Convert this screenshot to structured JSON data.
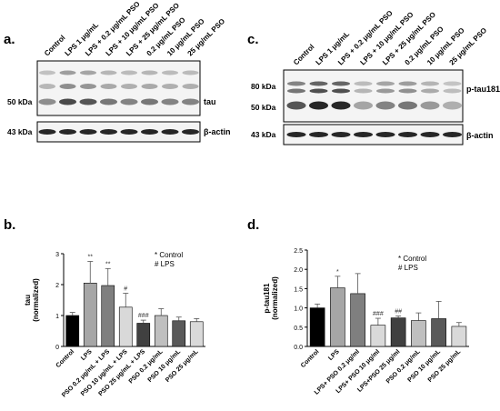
{
  "panels": {
    "a": "a.",
    "b": "b.",
    "c": "c.",
    "d": "d."
  },
  "blot_a": {
    "lanes": [
      "Control",
      "LPS 1 μg/mL",
      "LPS + 0.2 μg/mL PSO",
      "LPS + 10 μg/mL PSO",
      "LPS + 25 μg/mL PSO",
      "0.2 μg/mL PSO",
      "10 μg/mL PSO",
      "25 μg/mL PSO"
    ],
    "marker_top": "50 kDa",
    "marker_bottom": "43 kDa",
    "label_top": "tau",
    "label_bottom": "β-actin"
  },
  "blot_c": {
    "lanes": [
      "Control",
      "LPS 1 μg/mL",
      "LPS + 0.2 μg/mL PSO",
      "LPS + 10 μg/mL PSO",
      "LPS + 25 μg/mL PSO",
      "0.2 μg/mL PSO",
      "10 μg/mL PSO",
      "25 μg/mL PSO"
    ],
    "marker_1": "80 kDa",
    "marker_2": "50 kDa",
    "marker_bottom": "43 kDa",
    "label_top": "p-tau181",
    "label_bottom": "β-actin"
  },
  "chart_data": [
    {
      "type": "bar",
      "panel": "b",
      "ylabel_line1": "tau",
      "ylabel_line2": "(normalized)",
      "ylim": [
        0,
        3
      ],
      "yticks": [
        0,
        1,
        2,
        3
      ],
      "categories": [
        "Control",
        "LPS",
        "PSO 0.2 μg/mL + LPS",
        "PSO 10 μg/mL + LPS",
        "PSO 25 μg/mL + LPS",
        "PSO 0.2 μg/mL",
        "PSO 10 μg/mL",
        "PSO 25 μg/mL"
      ],
      "values": [
        1.0,
        2.05,
        1.97,
        1.27,
        0.75,
        1.0,
        0.83,
        0.8
      ],
      "errors": [
        0.1,
        0.7,
        0.55,
        0.45,
        0.1,
        0.22,
        0.12,
        0.1
      ],
      "significance": [
        "",
        "**",
        "**",
        "#",
        "###",
        "",
        "",
        ""
      ],
      "bar_colors": [
        "#000000",
        "#a6a6a6",
        "#7f7f7f",
        "#d9d9d9",
        "#404040",
        "#bfbfbf",
        "#595959",
        "#d9d9d9"
      ],
      "legend": [
        "* Control",
        "# LPS"
      ]
    },
    {
      "type": "bar",
      "panel": "d",
      "ylabel_line1": "p-tau181",
      "ylabel_line2": "(normalized)",
      "ylim": [
        0,
        2.5
      ],
      "yticks": [
        0.0,
        0.5,
        1.0,
        1.5,
        2.0,
        2.5
      ],
      "ytick_labels": [
        "0.0",
        "0.5",
        "1.0",
        "1.5",
        "2.0",
        "2.5"
      ],
      "categories": [
        "Control",
        "LPS",
        "LPS+ PSO 0.2 μg/ml",
        "LPS+ PSO 10 μg/ml",
        "LPS+PSO 25 μg/ml",
        "PSO 0.2 μg/mL",
        "PSO 10 μg/mL",
        "PSO 25 μg/mL"
      ],
      "values": [
        1.0,
        1.52,
        1.37,
        0.55,
        0.74,
        0.67,
        0.72,
        0.52
      ],
      "errors": [
        0.1,
        0.3,
        0.52,
        0.18,
        0.05,
        0.2,
        0.45,
        0.1
      ],
      "significance": [
        "",
        "*",
        "",
        "###",
        "##",
        "",
        "",
        ""
      ],
      "bar_colors": [
        "#000000",
        "#a6a6a6",
        "#7f7f7f",
        "#d9d9d9",
        "#404040",
        "#bfbfbf",
        "#595959",
        "#d9d9d9"
      ],
      "legend": [
        "* Control",
        "# LPS"
      ]
    }
  ]
}
